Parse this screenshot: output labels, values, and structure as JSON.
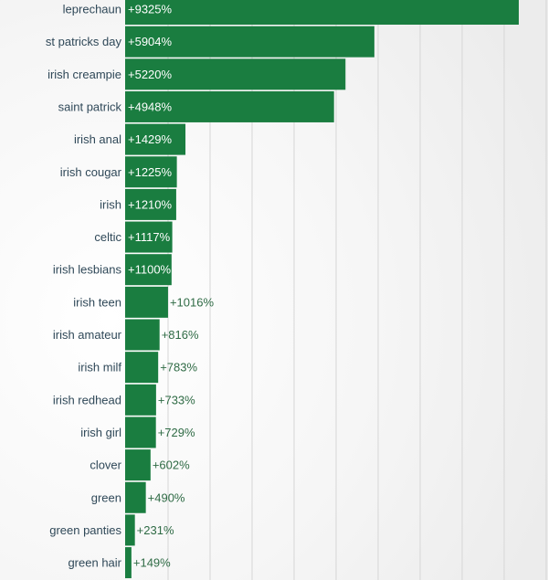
{
  "chart_data": {
    "type": "bar",
    "orientation": "horizontal",
    "categories": [
      "leprechaun",
      "st patricks day",
      "irish creampie",
      "saint patrick",
      "irish anal",
      "irish cougar",
      "irish",
      "celtic",
      "irish lesbians",
      "irish teen",
      "irish amateur",
      "irish milf",
      "irish redhead",
      "irish girl",
      "clover",
      "green",
      "green panties",
      "green hair"
    ],
    "values": [
      9325,
      5904,
      5220,
      4948,
      1429,
      1225,
      1210,
      1117,
      1100,
      1016,
      816,
      783,
      733,
      729,
      602,
      490,
      231,
      149
    ],
    "value_labels": [
      "+9325%",
      "+5904%",
      "+5220%",
      "+4948%",
      "+1429%",
      "+1225%",
      "+1210%",
      "+1117%",
      "+1100%",
      "+1016%",
      "+816%",
      "+783%",
      "+733%",
      "+729%",
      "+602%",
      "+490%",
      "+231%",
      "+149%"
    ],
    "title": "",
    "xlabel": "",
    "ylabel": "",
    "xlim": [
      0,
      9325
    ],
    "grid": true,
    "bar_color": "#1a7d40",
    "grid_color": "#d6d6d6",
    "label_color": "#2f4858",
    "value_label_inside_color": "#ffffff",
    "value_label_outside_color": "#2f6b45"
  }
}
